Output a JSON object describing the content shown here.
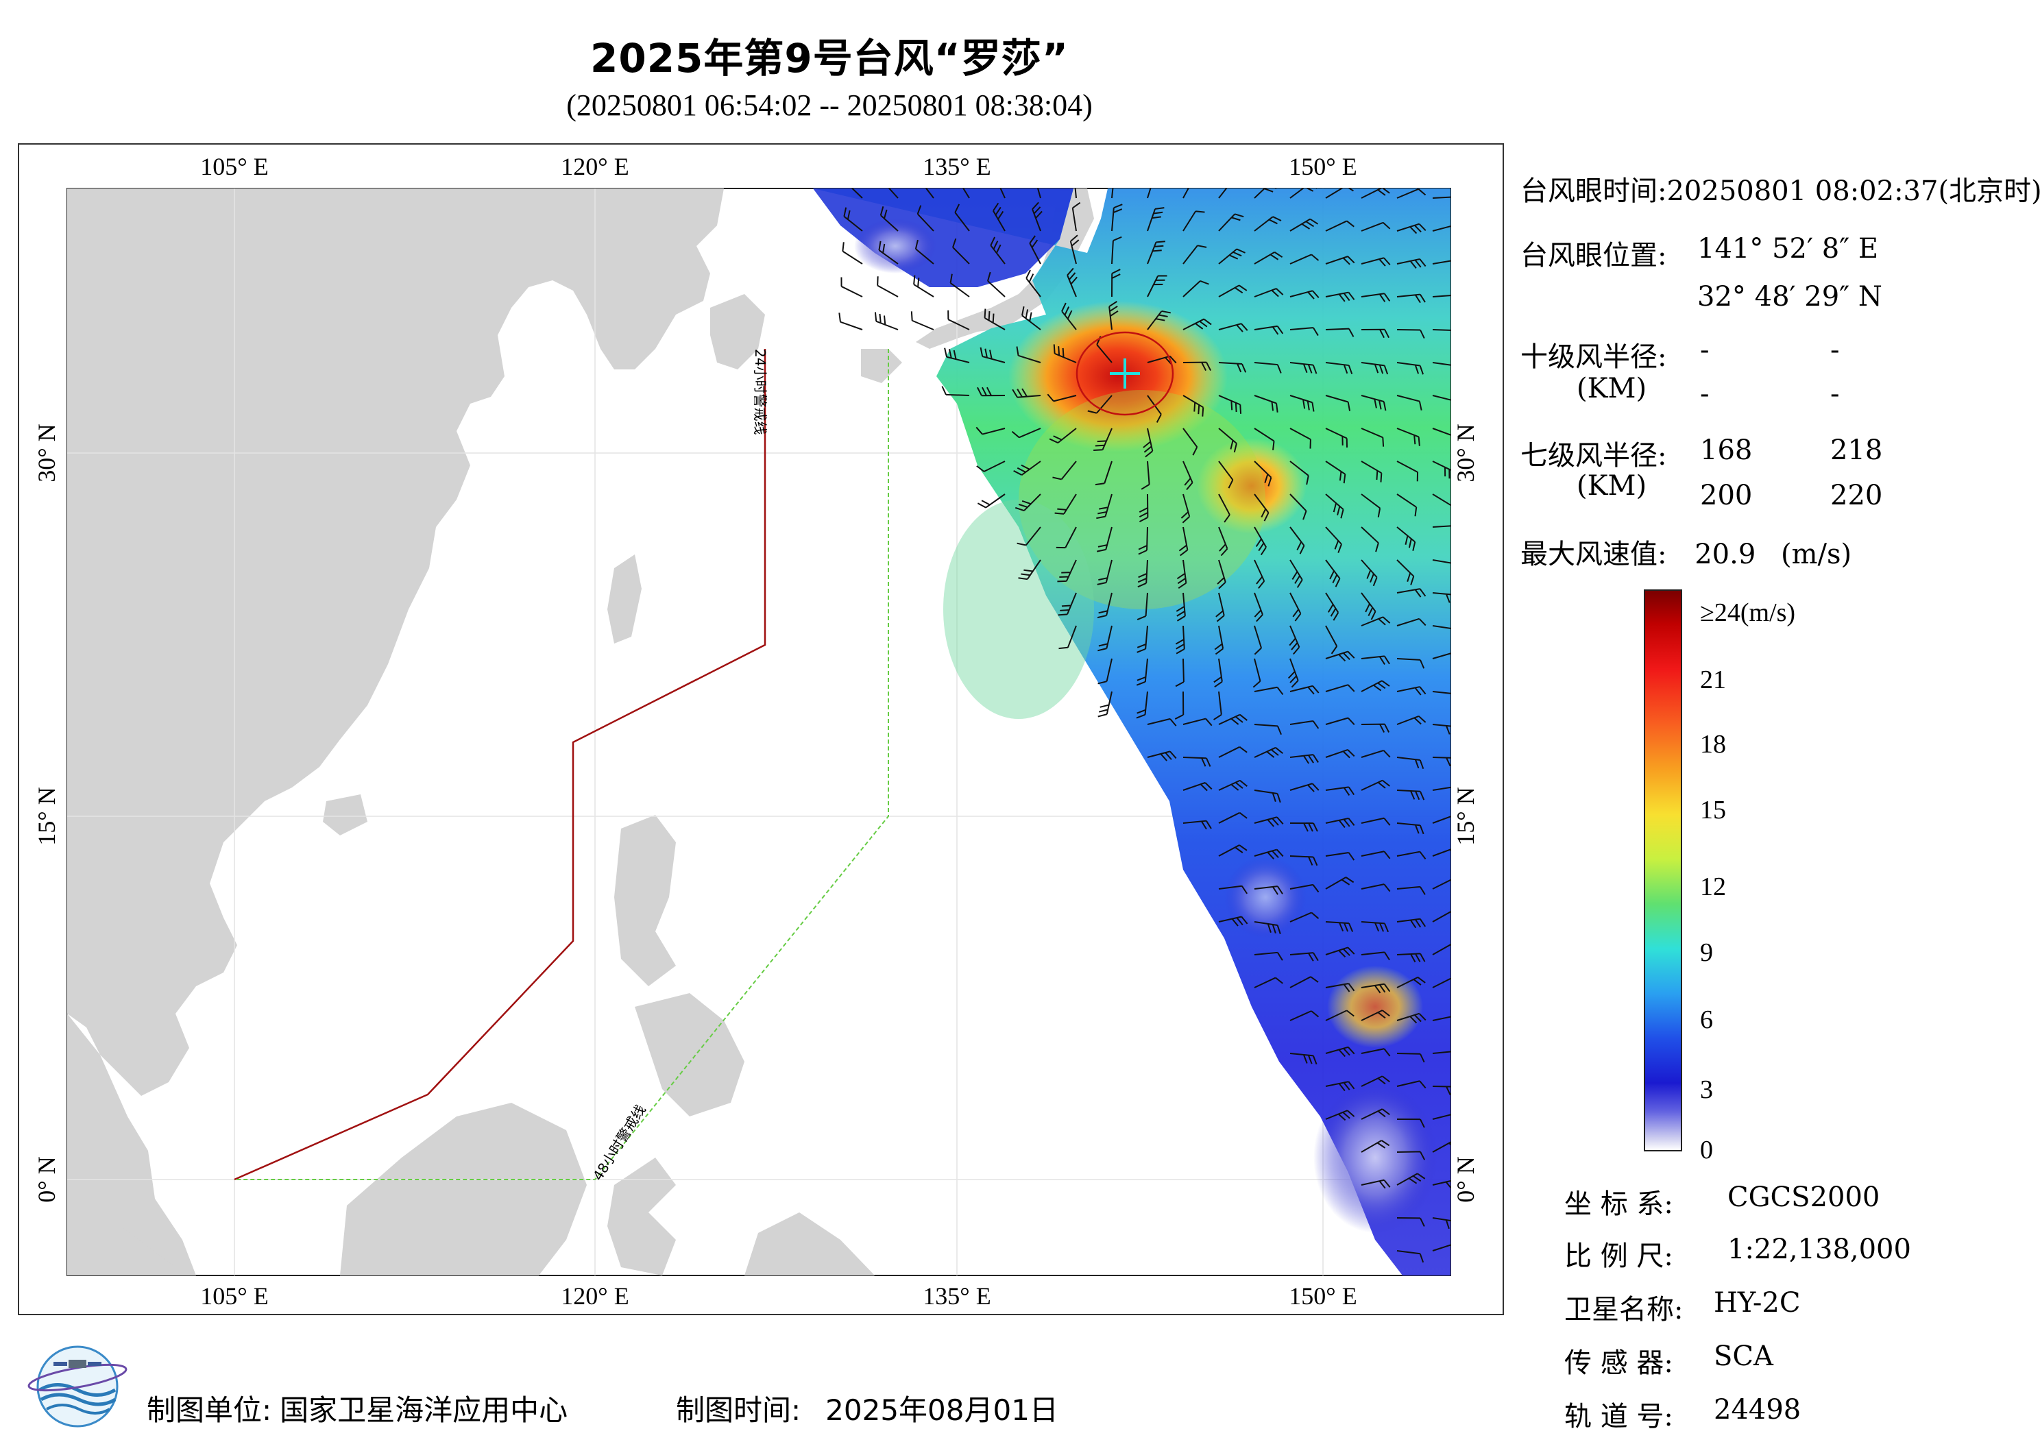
{
  "title": "2025年第9号台风“罗莎”",
  "time_range": "(20250801 06:54:02 -- 20250801 08:38:04)",
  "map": {
    "lon_labels": [
      "105° E",
      "120° E",
      "135° E",
      "150° E"
    ],
    "lat_labels_left": [
      "30° N",
      "15° N",
      "0° N"
    ],
    "lat_labels_right": [
      "30° N",
      "15° N",
      "0° N"
    ],
    "line_24h_label": "24小时警戒线",
    "line_48h_label": "48小时警戒线",
    "line_24h_color": "#a01010",
    "line_48h_color": "#66cc44",
    "land_color": "#d3d3d3"
  },
  "info": {
    "eye_time_label": "台风眼时间:",
    "eye_time_value": "20250801 08:02:37(北京时)",
    "eye_pos_label": "台风眼位置:",
    "eye_lon": "141° 52′ 8″ E",
    "eye_lat": "32° 48′ 29″ N",
    "r10_label": "十级风半径:",
    "r10_unit": "(KM)",
    "r10_values": [
      "-",
      "-",
      "-",
      "-"
    ],
    "r7_label": "七级风半径:",
    "r7_unit": "(KM)",
    "r7_values": [
      "168",
      "218",
      "200",
      "220"
    ],
    "max_wind_label": "最大风速值:",
    "max_wind_value": "20.9",
    "max_wind_unit": "(m/s)"
  },
  "colorbar": {
    "labels": [
      "≥24(m/s)",
      "21",
      "18",
      "15",
      "12",
      "9",
      "6",
      "3",
      "0"
    ]
  },
  "meta": {
    "crs_label": "坐 标 系:",
    "crs_value": "CGCS2000",
    "scale_label": "比 例 尺:",
    "scale_value": "1:22,138,000",
    "satellite_label": "卫星名称:",
    "satellite_value": "HY-2C",
    "sensor_label": "传 感 器:",
    "sensor_value": "SCA",
    "orbit_label": "轨 道 号:",
    "orbit_value": "24498"
  },
  "footer": {
    "maker_label": "制图单位:",
    "maker_value": "国家卫星海洋应用中心",
    "date_label": "制图时间:",
    "date_value": "2025年08月01日"
  }
}
